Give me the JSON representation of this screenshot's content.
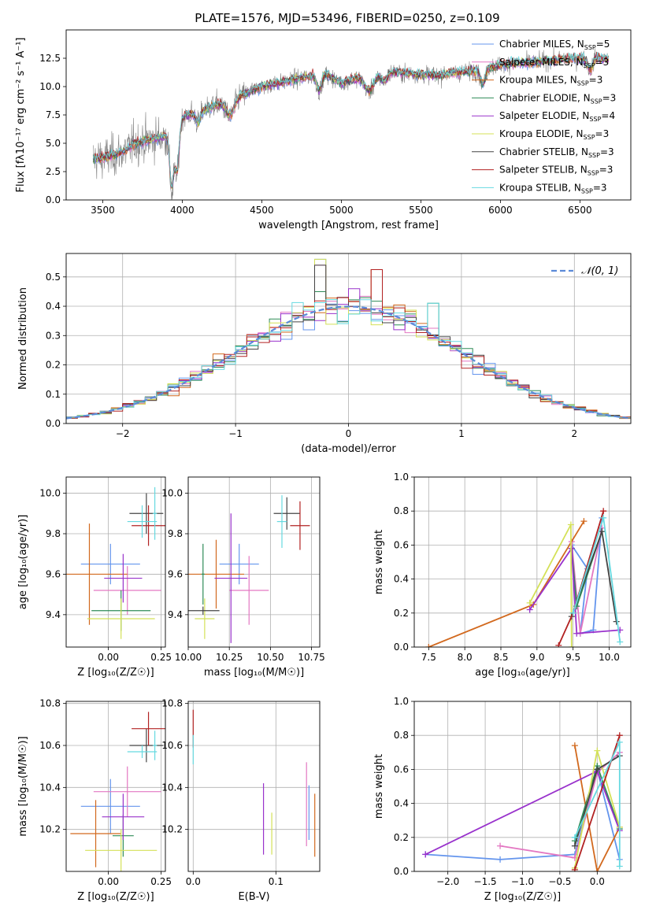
{
  "figure_title": "PLATE=1576, MJD=53496, FIBERID=0250, z=0.109",
  "colors": {
    "Chabrier MILES": "#6495ed",
    "Salpeter MILES": "#e377c2",
    "Kroupa MILES": "#d2691e",
    "Chabrier ELODIE": "#2e8b57",
    "Salpeter ELODIE": "#9932cc",
    "Kroupa ELODIE": "#d4e157",
    "Chabrier STELIB": "#444444",
    "Salpeter STELIB": "#b22222",
    "Kroupa STELIB": "#66d9e0",
    "data": "#808080",
    "normal_curve": "#5b8ad8",
    "grid": "#b0b0b0"
  },
  "chart_data": [
    {
      "id": "spectrum",
      "type": "line",
      "title": "PLATE=1576, MJD=53496, FIBERID=0250, z=0.109",
      "xlabel": "wavelength [Angstrom, rest frame]",
      "ylabel": "Flux [fλ10⁻¹⁷ erg cm⁻² s⁻¹ A⁻¹]",
      "xlim": [
        3270,
        6820
      ],
      "ylim": [
        0,
        15
      ],
      "xticks": [
        3500,
        4000,
        4500,
        5000,
        5500,
        6000,
        6500
      ],
      "yticks": [
        0.0,
        2.5,
        5.0,
        7.5,
        10.0,
        12.5
      ],
      "ytick_labels": [
        "0.0",
        "2.5",
        "5.0",
        "7.5",
        "10.0",
        "12.5"
      ],
      "grid": false,
      "legend_position": "right",
      "legend": [
        {
          "name": "Chabrier MILES",
          "nssp": "5"
        },
        {
          "name": "Salpeter MILES",
          "nssp": "3"
        },
        {
          "name": "Kroupa MILES",
          "nssp": "3"
        },
        {
          "name": "Chabrier ELODIE",
          "nssp": "3"
        },
        {
          "name": "Salpeter ELODIE",
          "nssp": "4"
        },
        {
          "name": "Kroupa ELODIE",
          "nssp": "3"
        },
        {
          "name": "Chabrier STELIB",
          "nssp": "3"
        },
        {
          "name": "Salpeter STELIB",
          "nssp": "3"
        },
        {
          "name": "Kroupa STELIB",
          "nssp": "3"
        }
      ],
      "data_wavelength_range": [
        3440,
        6680
      ],
      "model_continuum": {
        "x": [
          3440,
          3550,
          3650,
          3700,
          3800,
          3900,
          3950,
          4000,
          4100,
          4200,
          4300,
          4400,
          4500,
          4600,
          4700,
          4800,
          4900,
          5000,
          5100,
          5200,
          5300,
          5400,
          5500,
          5600,
          5700,
          5800,
          5900,
          6000,
          6100,
          6200,
          6300,
          6400,
          6500,
          6600,
          6680
        ],
        "y": [
          3.6,
          3.8,
          4.4,
          5.0,
          5.3,
          5.7,
          5.0,
          7.3,
          7.8,
          8.3,
          8.8,
          9.4,
          10.0,
          10.3,
          10.6,
          10.9,
          11.1,
          10.3,
          10.8,
          11.1,
          11.3,
          11.2,
          11.1,
          11.0,
          11.2,
          11.3,
          11.6,
          11.9,
          12.1,
          12.1,
          12.3,
          12.4,
          12.5,
          12.6,
          12.4
        ]
      },
      "features": [
        {
          "x": 3933,
          "depth": 4.5,
          "width": 12
        },
        {
          "x": 3968,
          "depth": 3.5,
          "width": 12
        },
        {
          "x": 4101,
          "depth": 1.0,
          "width": 15
        },
        {
          "x": 4300,
          "depth": 1.5,
          "width": 25
        },
        {
          "x": 4861,
          "depth": 1.5,
          "width": 15
        },
        {
          "x": 5175,
          "depth": 1.5,
          "width": 30
        },
        {
          "x": 5270,
          "depth": 0.8,
          "width": 20
        },
        {
          "x": 5890,
          "depth": 1.5,
          "width": 15
        },
        {
          "x": 6563,
          "depth": 1.2,
          "width": 15
        }
      ]
    },
    {
      "id": "residuals",
      "type": "histogram",
      "xlabel": "(data-model)/error",
      "ylabel": "Normed distribution",
      "xlim": [
        -2.5,
        2.5
      ],
      "ylim": [
        0,
        0.58
      ],
      "xticks": [
        -2,
        -1,
        0,
        1,
        2
      ],
      "xtick_labels": [
        "−2",
        "−1",
        "0",
        "1",
        "2"
      ],
      "yticks": [
        0.0,
        0.1,
        0.2,
        0.3,
        0.4,
        0.5
      ],
      "ytick_labels": [
        "0.0",
        "0.1",
        "0.2",
        "0.3",
        "0.4",
        "0.5"
      ],
      "grid": true,
      "bin_width": 0.1,
      "legend_label": "𝒩(0, 1)",
      "legend_position": "top-right",
      "notable_peaks": [
        {
          "x": -0.25,
          "value": 0.56
        },
        {
          "x": -0.25,
          "value": 0.54
        },
        {
          "x": 0.25,
          "value": 0.525
        },
        {
          "x": 0.75,
          "value": 0.41
        },
        {
          "x": 0.05,
          "value": 0.46
        }
      ]
    },
    {
      "id": "age_vs_Z",
      "type": "errorbar",
      "xlabel": "Z [log₁₀(Z/Z☉)]",
      "ylabel": "age  [log₁₀(age/yr)]",
      "xlim": [
        -0.2,
        0.27
      ],
      "ylim": [
        9.24,
        10.08
      ],
      "xticks": [
        0.0,
        0.25
      ],
      "xtick_labels": [
        "0.00",
        "0.25"
      ],
      "yticks": [
        9.4,
        9.6,
        9.8,
        10.0
      ],
      "ytick_labels": [
        "9.4",
        "9.6",
        "9.8",
        "10.0"
      ],
      "grid": true,
      "points": [
        {
          "series": "Chabrier MILES",
          "x": 0.01,
          "xerr": 0.14,
          "y": 9.65,
          "yerr": 0.1
        },
        {
          "series": "Salpeter MILES",
          "x": 0.09,
          "xerr": 0.16,
          "y": 9.52,
          "yerr": 0.12
        },
        {
          "series": "Kroupa MILES",
          "x": -0.09,
          "xerr": 0.18,
          "y": 9.6,
          "yerr": 0.25
        },
        {
          "series": "Chabrier ELODIE",
          "x": 0.06,
          "xerr": 0.14,
          "y": 9.42,
          "yerr": 0.1
        },
        {
          "series": "Salpeter ELODIE",
          "x": 0.07,
          "xerr": 0.09,
          "y": 9.58,
          "yerr": 0.12
        },
        {
          "series": "Kroupa ELODIE",
          "x": 0.06,
          "xerr": 0.16,
          "y": 9.38,
          "yerr": 0.1
        },
        {
          "series": "Chabrier STELIB",
          "x": 0.18,
          "xerr": 0.08,
          "y": 9.9,
          "yerr": 0.1
        },
        {
          "series": "Salpeter STELIB",
          "x": 0.19,
          "xerr": 0.08,
          "y": 9.84,
          "yerr": 0.1
        },
        {
          "series": "Kroupa STELIB",
          "x": 0.16,
          "xerr": 0.07,
          "y": 9.86,
          "yerr": 0.08
        },
        {
          "series": "Kroupa STELIB",
          "x": 0.22,
          "xerr": 0.01,
          "y": 9.9,
          "yerr": 0.13
        }
      ]
    },
    {
      "id": "age_vs_mass",
      "type": "errorbar",
      "xlabel": "mass [log₁₀(M/M☉)]",
      "ylabel": "",
      "xlim": [
        10.0,
        10.8
      ],
      "ylim": [
        9.24,
        10.08
      ],
      "xticks": [
        10.0,
        10.25,
        10.5,
        10.75
      ],
      "xtick_labels": [
        "10.00",
        "10.25",
        "10.50",
        "10.75"
      ],
      "yticks": [
        9.4,
        9.6,
        9.8,
        10.0
      ],
      "ytick_labels": [
        "9.4",
        "9.6",
        "9.8",
        "10.0"
      ],
      "grid": true,
      "points": [
        {
          "series": "Chabrier MILES",
          "x": 10.31,
          "xerr": 0.12,
          "y": 9.65,
          "yerr": 0.1
        },
        {
          "series": "Salpeter MILES",
          "x": 10.37,
          "xerr": 0.12,
          "y": 9.52,
          "yerr": 0.17
        },
        {
          "series": "Kroupa MILES",
          "x": 10.17,
          "xerr": 0.17,
          "y": 9.6,
          "yerr": 0.17
        },
        {
          "series": "Chabrier ELODIE",
          "x": 10.09,
          "xerr": 0.01,
          "y": 9.6,
          "yerr": 0.15
        },
        {
          "series": "Salpeter ELODIE",
          "x": 10.26,
          "xerr": 0.1,
          "y": 9.58,
          "yerr": 0.32
        },
        {
          "series": "Kroupa ELODIE",
          "x": 10.1,
          "xerr": 0.06,
          "y": 9.38,
          "yerr": 0.1
        },
        {
          "series": "Chabrier STELIB",
          "x": 10.6,
          "xerr": 0.08,
          "y": 9.9,
          "yerr": 0.08
        },
        {
          "series": "Salpeter STELIB",
          "x": 10.68,
          "xerr": 0.06,
          "y": 9.84,
          "yerr": 0.12
        },
        {
          "series": "Kroupa STELIB",
          "x": 10.57,
          "xerr": 0.03,
          "y": 9.86,
          "yerr": 0.13
        },
        {
          "series": "Chabrier STELIB",
          "x": 10.09,
          "xerr": 0.1,
          "y": 9.42,
          "yerr": 0.02
        }
      ]
    },
    {
      "id": "weight_vs_age",
      "type": "line",
      "xlabel": "age  [log₁₀(age/yr)]",
      "ylabel": "mass weight",
      "xlim": [
        7.3,
        10.3
      ],
      "ylim": [
        0,
        1
      ],
      "xticks": [
        7.5,
        8.0,
        8.5,
        9.0,
        9.5,
        10.0
      ],
      "xtick_labels": [
        "7.5",
        "8.0",
        "8.5",
        "9.0",
        "9.5",
        "10.0"
      ],
      "yticks": [
        0.0,
        0.2,
        0.4,
        0.6,
        0.8,
        1.0
      ],
      "ytick_labels": [
        "0.0",
        "0.2",
        "0.4",
        "0.6",
        "0.8",
        "1.0"
      ],
      "grid": true,
      "series": [
        {
          "name": "Chabrier MILES",
          "x": [
            9.48,
            9.7,
            9.6,
            9.78,
            9.9
          ],
          "y": [
            0.6,
            0.46,
            0.08,
            0.1,
            0.76
          ]
        },
        {
          "name": "Salpeter MILES",
          "x": [
            9.48,
            9.6,
            9.9
          ],
          "y": [
            0.62,
            0.08,
            0.7
          ]
        },
        {
          "name": "Kroupa MILES",
          "x": [
            7.5,
            8.95,
            9.65
          ],
          "y": [
            0.0,
            0.25,
            0.74
          ]
        },
        {
          "name": "Chabrier ELODIE",
          "x": [
            9.48,
            9.55,
            9.9
          ],
          "y": [
            0.58,
            0.24,
            0.68
          ]
        },
        {
          "name": "Salpeter ELODIE",
          "x": [
            8.9,
            9.48,
            9.55,
            10.15
          ],
          "y": [
            0.22,
            0.58,
            0.08,
            0.1
          ]
        },
        {
          "name": "Kroupa ELODIE",
          "x": [
            8.9,
            9.47,
            9.48
          ],
          "y": [
            0.26,
            0.72,
            0.0
          ]
        },
        {
          "name": "Chabrier STELIB",
          "x": [
            9.48,
            9.9,
            10.1
          ],
          "y": [
            0.18,
            0.68,
            0.15
          ]
        },
        {
          "name": "Salpeter STELIB",
          "x": [
            9.3,
            9.5,
            9.92
          ],
          "y": [
            0.01,
            0.2,
            0.8
          ]
        },
        {
          "name": "Kroupa STELIB",
          "x": [
            9.5,
            9.92,
            10.15
          ],
          "y": [
            0.2,
            0.76,
            0.03
          ]
        }
      ]
    },
    {
      "id": "mass_vs_Z",
      "type": "errorbar",
      "xlabel": "Z [log₁₀(Z/Z☉)]",
      "ylabel": "mass [log₁₀(M/M☉)]",
      "xlim": [
        -0.2,
        0.27
      ],
      "ylim": [
        10.0,
        10.81
      ],
      "xticks": [
        0.0,
        0.25
      ],
      "xtick_labels": [
        "0.00",
        "0.25"
      ],
      "yticks": [
        10.2,
        10.4,
        10.6,
        10.8
      ],
      "ytick_labels": [
        "10.2",
        "10.4",
        "10.6",
        "10.8"
      ],
      "grid": true,
      "points": [
        {
          "series": "Chabrier MILES",
          "x": 0.01,
          "xerr": 0.14,
          "y": 10.31,
          "yerr": 0.13
        },
        {
          "series": "Salpeter MILES",
          "x": 0.09,
          "xerr": 0.16,
          "y": 10.38,
          "yerr": 0.12
        },
        {
          "series": "Kroupa MILES",
          "x": -0.06,
          "xerr": 0.12,
          "y": 10.18,
          "yerr": 0.16
        },
        {
          "series": "Chabrier ELODIE",
          "x": 0.07,
          "xerr": 0.05,
          "y": 10.17,
          "yerr": 0.1
        },
        {
          "series": "Salpeter ELODIE",
          "x": 0.07,
          "xerr": 0.1,
          "y": 10.26,
          "yerr": 0.11
        },
        {
          "series": "Kroupa ELODIE",
          "x": 0.06,
          "xerr": 0.17,
          "y": 10.1,
          "yerr": 0.1
        },
        {
          "series": "Chabrier STELIB",
          "x": 0.18,
          "xerr": 0.08,
          "y": 10.6,
          "yerr": 0.08
        },
        {
          "series": "Salpeter STELIB",
          "x": 0.19,
          "xerr": 0.08,
          "y": 10.68,
          "yerr": 0.08
        },
        {
          "series": "Kroupa STELIB",
          "x": 0.16,
          "xerr": 0.07,
          "y": 10.57,
          "yerr": 0.03
        },
        {
          "series": "Kroupa STELIB",
          "x": 0.22,
          "xerr": 0.01,
          "y": 10.6,
          "yerr": 0.07
        }
      ]
    },
    {
      "id": "mass_vs_ebv",
      "type": "errorbar",
      "xlabel": "E(B-V)",
      "ylabel": "",
      "xlim": [
        -0.006,
        0.153
      ],
      "ylim": [
        10.0,
        10.81
      ],
      "xticks": [
        0.0,
        0.1
      ],
      "xtick_labels": [
        "0.0",
        "0.1"
      ],
      "yticks": [
        10.2,
        10.4,
        10.6,
        10.8
      ],
      "ytick_labels": [
        "10.2",
        "10.4",
        "10.6",
        "10.8"
      ],
      "grid": true,
      "points": [
        {
          "series": "Salpeter STELIB",
          "x": 0.0,
          "xerr": 0,
          "y": 10.68,
          "yerr": 0.09
        },
        {
          "series": "Kroupa STELIB",
          "x": 0.0,
          "xerr": 0,
          "y": 10.58,
          "yerr": 0.07
        },
        {
          "series": "Salpeter ELODIE",
          "x": 0.085,
          "xerr": 0,
          "y": 10.25,
          "yerr": 0.17
        },
        {
          "series": "Kroupa ELODIE",
          "x": 0.095,
          "xerr": 0,
          "y": 10.18,
          "yerr": 0.1
        },
        {
          "series": "Salpeter MILES",
          "x": 0.137,
          "xerr": 0,
          "y": 10.32,
          "yerr": 0.2
        },
        {
          "series": "Chabrier MILES",
          "x": 0.14,
          "xerr": 0,
          "y": 10.28,
          "yerr": 0.13
        },
        {
          "series": "Kroupa MILES",
          "x": 0.147,
          "xerr": 0,
          "y": 10.22,
          "yerr": 0.15
        }
      ]
    },
    {
      "id": "weight_vs_Z",
      "type": "line",
      "xlabel": "Z [log₁₀(Z/Z☉)]",
      "ylabel": "mass weight",
      "xlim": [
        -2.45,
        0.45
      ],
      "ylim": [
        0,
        1
      ],
      "xticks": [
        -2.0,
        -1.5,
        -1.0,
        -0.5,
        0.0
      ],
      "xtick_labels": [
        "−2.0",
        "−1.5",
        "−1.0",
        "−0.5",
        "0.0"
      ],
      "yticks": [
        0.0,
        0.2,
        0.4,
        0.6,
        0.8,
        1.0
      ],
      "ytick_labels": [
        "0.0",
        "0.2",
        "0.4",
        "0.6",
        "0.8",
        "1.0"
      ],
      "grid": true,
      "series": [
        {
          "name": "Chabrier MILES",
          "x": [
            -2.3,
            -1.3,
            -0.3,
            0.0,
            0.3
          ],
          "y": [
            0.1,
            0.07,
            0.1,
            0.6,
            0.07
          ]
        },
        {
          "name": "Salpeter MILES",
          "x": [
            -1.3,
            -0.3,
            0.0,
            0.3
          ],
          "y": [
            0.15,
            0.08,
            0.58,
            0.7
          ]
        },
        {
          "name": "Kroupa MILES",
          "x": [
            -0.3,
            0.0,
            0.3
          ],
          "y": [
            0.74,
            0.0,
            0.26
          ]
        },
        {
          "name": "Chabrier ELODIE",
          "x": [
            -0.3,
            0.0,
            0.3
          ],
          "y": [
            0.18,
            0.62,
            0.25
          ]
        },
        {
          "name": "Salpeter ELODIE",
          "x": [
            -2.3,
            0.0,
            0.3
          ],
          "y": [
            0.1,
            0.59,
            0.24
          ]
        },
        {
          "name": "Kroupa ELODIE",
          "x": [
            -0.3,
            0.0,
            0.3
          ],
          "y": [
            0.02,
            0.71,
            0.26
          ]
        },
        {
          "name": "Chabrier STELIB",
          "x": [
            -0.3,
            0.0,
            0.3
          ],
          "y": [
            0.15,
            0.6,
            0.68
          ]
        },
        {
          "name": "Salpeter STELIB",
          "x": [
            -0.3,
            0.3
          ],
          "y": [
            0.01,
            0.8
          ]
        },
        {
          "name": "Kroupa STELIB",
          "x": [
            -0.3,
            0.3,
            0.3
          ],
          "y": [
            0.2,
            0.76,
            0.03
          ]
        }
      ]
    }
  ]
}
